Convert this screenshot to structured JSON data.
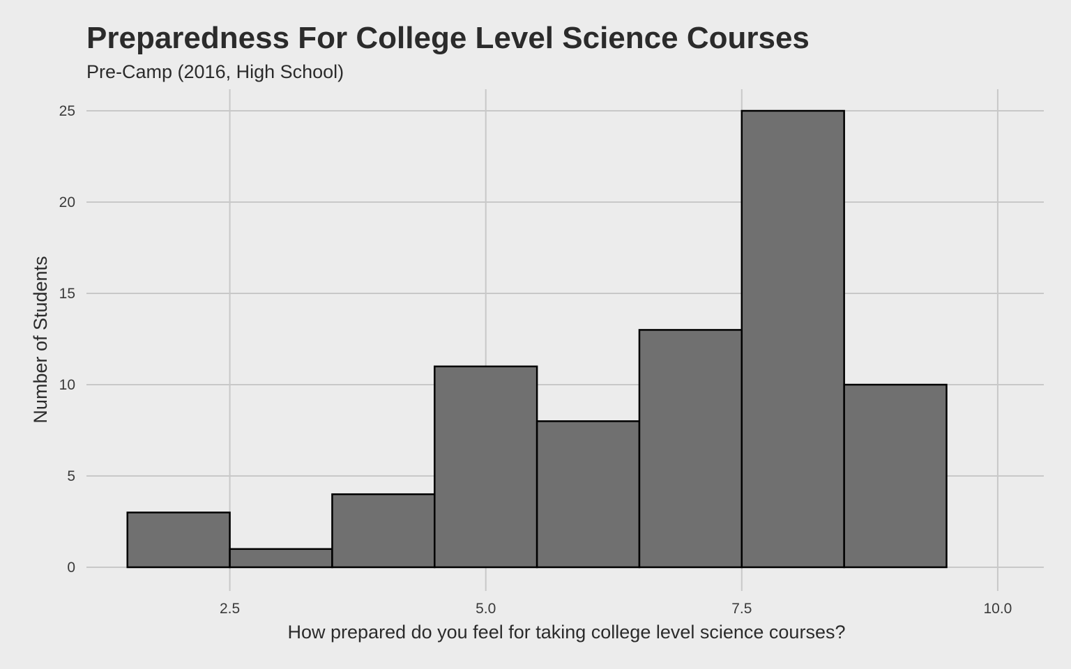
{
  "chart_data": {
    "type": "bar",
    "title": "Preparedness For College Level Science Courses",
    "subtitle": "Pre-Camp (2016, High School)",
    "xlabel": "How prepared do you feel for taking college level science courses?",
    "ylabel": "Number of Students",
    "bins": [
      {
        "x0": 1.5,
        "x1": 2.5,
        "count": 3
      },
      {
        "x0": 2.5,
        "x1": 3.5,
        "count": 1
      },
      {
        "x0": 3.5,
        "x1": 4.5,
        "count": 4
      },
      {
        "x0": 4.5,
        "x1": 5.5,
        "count": 11
      },
      {
        "x0": 5.5,
        "x1": 6.5,
        "count": 8
      },
      {
        "x0": 6.5,
        "x1": 7.5,
        "count": 13
      },
      {
        "x0": 7.5,
        "x1": 8.5,
        "count": 25
      },
      {
        "x0": 8.5,
        "x1": 9.5,
        "count": 10
      }
    ],
    "xlim": [
      1.1,
      10.45
    ],
    "ylim": [
      0,
      25
    ],
    "x_ticks": [
      {
        "value": 2.5,
        "label": "2.5"
      },
      {
        "value": 5.0,
        "label": "5.0"
      },
      {
        "value": 7.5,
        "label": "7.5"
      },
      {
        "value": 10.0,
        "label": "10.0"
      }
    ],
    "y_ticks": [
      {
        "value": 0,
        "label": "0"
      },
      {
        "value": 5,
        "label": "5"
      },
      {
        "value": 10,
        "label": "10"
      },
      {
        "value": 15,
        "label": "15"
      },
      {
        "value": 20,
        "label": "20"
      },
      {
        "value": 25,
        "label": "25"
      }
    ],
    "grid": true,
    "legend": "none",
    "colors": {
      "bar_fill": "#707070",
      "bar_stroke": "#000000",
      "background": "#ececec",
      "grid": "#c8c8c8"
    }
  }
}
